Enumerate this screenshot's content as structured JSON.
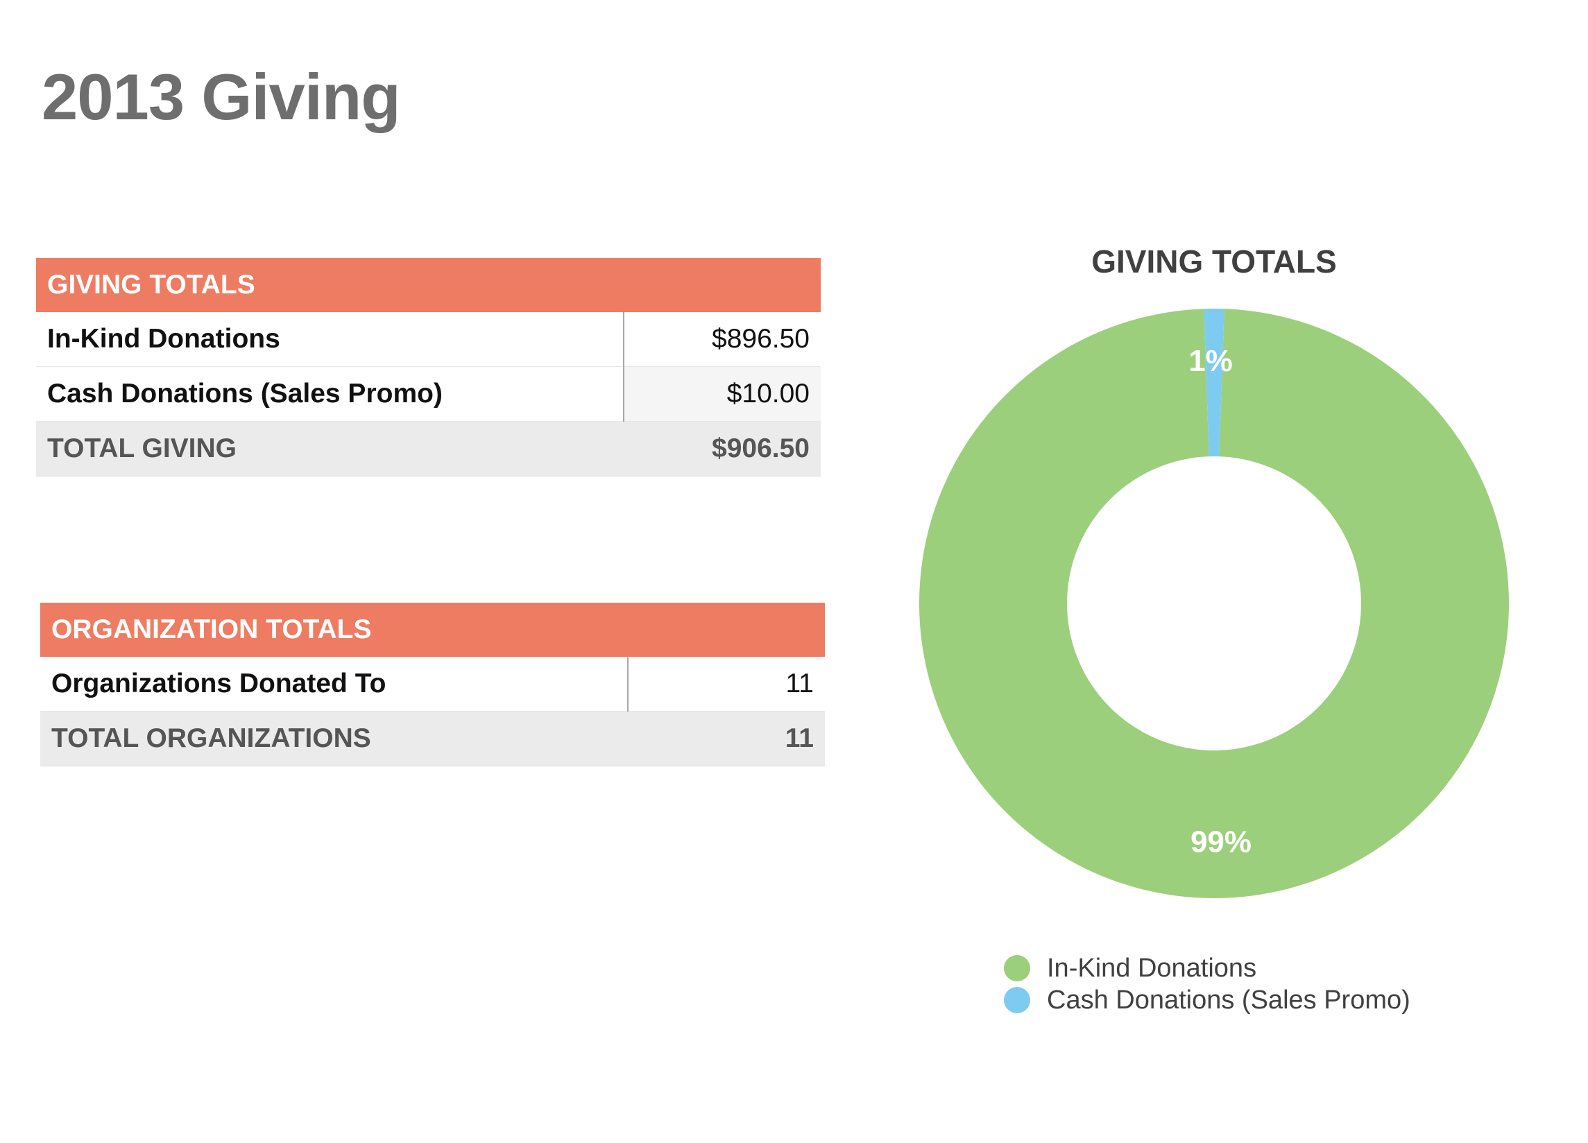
{
  "page": {
    "title": "2013 Giving"
  },
  "giving_table": {
    "header": "GIVING TOTALS",
    "rows": [
      {
        "label": "In-Kind Donations",
        "value": "$896.50"
      },
      {
        "label": "Cash Donations (Sales Promo)",
        "value": "$10.00"
      }
    ],
    "total": {
      "label": "TOTAL GIVING",
      "value": "$906.50"
    }
  },
  "org_table": {
    "header": "ORGANIZATION TOTALS",
    "rows": [
      {
        "label": "Organizations Donated To",
        "value": "11"
      }
    ],
    "total": {
      "label": "TOTAL ORGANIZATIONS",
      "value": "11"
    }
  },
  "colors": {
    "header": "#ee7c62",
    "in_kind": "#9ccf7b",
    "cash": "#7ecbf1"
  },
  "chart_data": {
    "type": "pie",
    "variant": "donut",
    "title": "GIVING TOTALS",
    "categories": [
      "In-Kind Donations",
      "Cash Donations (Sales Promo)"
    ],
    "values": [
      896.5,
      10.0
    ],
    "data_labels": [
      "99%",
      "1%"
    ],
    "colors": [
      "#9ccf7b",
      "#7ecbf1"
    ],
    "legend_position": "bottom"
  }
}
